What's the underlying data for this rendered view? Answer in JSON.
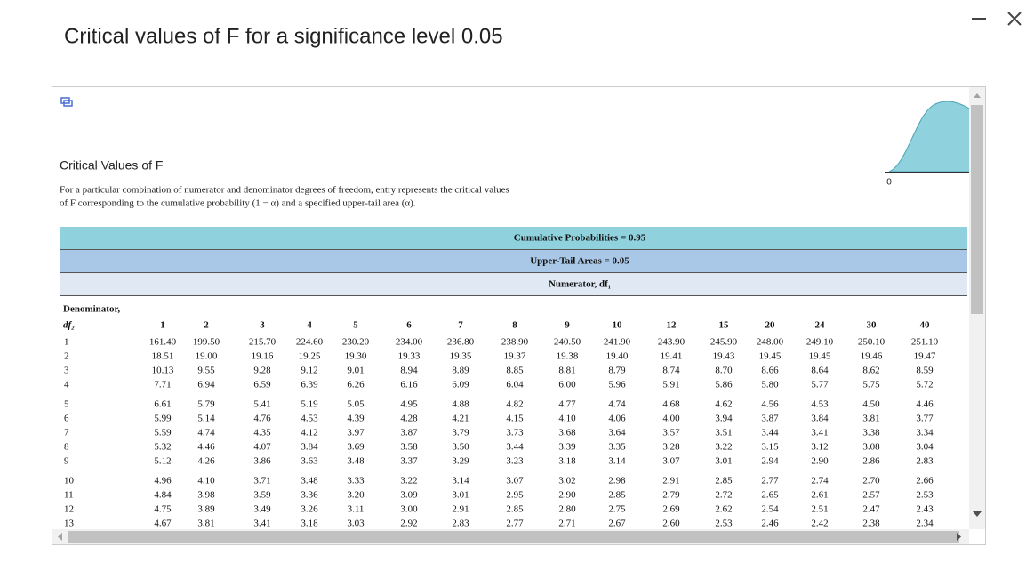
{
  "dialog": {
    "title": "Critical values of F for a significance level 0.05"
  },
  "content": {
    "heading": "Critical Values of F",
    "description": [
      "For a particular combination of numerator and denominator degrees of freedom, entry represents the critical values",
      "of F corresponding to the cumulative probability (1 − α) and a specified upper-tail area (α)."
    ],
    "graph_label": "0",
    "table": {
      "bands": [
        "Cumulative Probabilities = 0.95",
        "Upper-Tail Areas = 0.05",
        "Numerator, df₁"
      ],
      "row_header": [
        "Denominator,",
        "df₂"
      ],
      "columns": [
        1,
        2,
        3,
        4,
        5,
        6,
        7,
        8,
        9,
        10,
        12,
        15,
        20,
        24,
        30,
        40
      ],
      "rows": [
        {
          "label": "1",
          "values": [
            "161.40",
            "199.50",
            "215.70",
            "224.60",
            "230.20",
            "234.00",
            "236.80",
            "238.90",
            "240.50",
            "241.90",
            "243.90",
            "245.90",
            "248.00",
            "249.10",
            "250.10",
            "251.10"
          ]
        },
        {
          "label": "2",
          "values": [
            "18.51",
            "19.00",
            "19.16",
            "19.25",
            "19.30",
            "19.33",
            "19.35",
            "19.37",
            "19.38",
            "19.40",
            "19.41",
            "19.43",
            "19.45",
            "19.45",
            "19.46",
            "19.47"
          ]
        },
        {
          "label": "3",
          "values": [
            "10.13",
            "9.55",
            "9.28",
            "9.12",
            "9.01",
            "8.94",
            "8.89",
            "8.85",
            "8.81",
            "8.79",
            "8.74",
            "8.70",
            "8.66",
            "8.64",
            "8.62",
            "8.59"
          ]
        },
        {
          "label": "4",
          "values": [
            "7.71",
            "6.94",
            "6.59",
            "6.39",
            "6.26",
            "6.16",
            "6.09",
            "6.04",
            "6.00",
            "5.96",
            "5.91",
            "5.86",
            "5.80",
            "5.77",
            "5.75",
            "5.72"
          ]
        },
        {
          "label": "5",
          "values": [
            "6.61",
            "5.79",
            "5.41",
            "5.19",
            "5.05",
            "4.95",
            "4.88",
            "4.82",
            "4.77",
            "4.74",
            "4.68",
            "4.62",
            "4.56",
            "4.53",
            "4.50",
            "4.46"
          ]
        },
        {
          "label": "6",
          "values": [
            "5.99",
            "5.14",
            "4.76",
            "4.53",
            "4.39",
            "4.28",
            "4.21",
            "4.15",
            "4.10",
            "4.06",
            "4.00",
            "3.94",
            "3.87",
            "3.84",
            "3.81",
            "3.77"
          ]
        },
        {
          "label": "7",
          "values": [
            "5.59",
            "4.74",
            "4.35",
            "4.12",
            "3.97",
            "3.87",
            "3.79",
            "3.73",
            "3.68",
            "3.64",
            "3.57",
            "3.51",
            "3.44",
            "3.41",
            "3.38",
            "3.34"
          ]
        },
        {
          "label": "8",
          "values": [
            "5.32",
            "4.46",
            "4.07",
            "3.84",
            "3.69",
            "3.58",
            "3.50",
            "3.44",
            "3.39",
            "3.35",
            "3.28",
            "3.22",
            "3.15",
            "3.12",
            "3.08",
            "3.04"
          ]
        },
        {
          "label": "9",
          "values": [
            "5.12",
            "4.26",
            "3.86",
            "3.63",
            "3.48",
            "3.37",
            "3.29",
            "3.23",
            "3.18",
            "3.14",
            "3.07",
            "3.01",
            "2.94",
            "2.90",
            "2.86",
            "2.83"
          ]
        },
        {
          "label": "10",
          "values": [
            "4.96",
            "4.10",
            "3.71",
            "3.48",
            "3.33",
            "3.22",
            "3.14",
            "3.07",
            "3.02",
            "2.98",
            "2.91",
            "2.85",
            "2.77",
            "2.74",
            "2.70",
            "2.66"
          ]
        },
        {
          "label": "11",
          "values": [
            "4.84",
            "3.98",
            "3.59",
            "3.36",
            "3.20",
            "3.09",
            "3.01",
            "2.95",
            "2.90",
            "2.85",
            "2.79",
            "2.72",
            "2.65",
            "2.61",
            "2.57",
            "2.53"
          ]
        },
        {
          "label": "12",
          "values": [
            "4.75",
            "3.89",
            "3.49",
            "3.26",
            "3.11",
            "3.00",
            "2.91",
            "2.85",
            "2.80",
            "2.75",
            "2.69",
            "2.62",
            "2.54",
            "2.51",
            "2.47",
            "2.43"
          ]
        },
        {
          "label": "13",
          "values": [
            "4.67",
            "3.81",
            "3.41",
            "3.18",
            "3.03",
            "2.92",
            "2.83",
            "2.77",
            "2.71",
            "2.67",
            "2.60",
            "2.53",
            "2.46",
            "2.42",
            "2.38",
            "2.34"
          ]
        }
      ]
    }
  }
}
